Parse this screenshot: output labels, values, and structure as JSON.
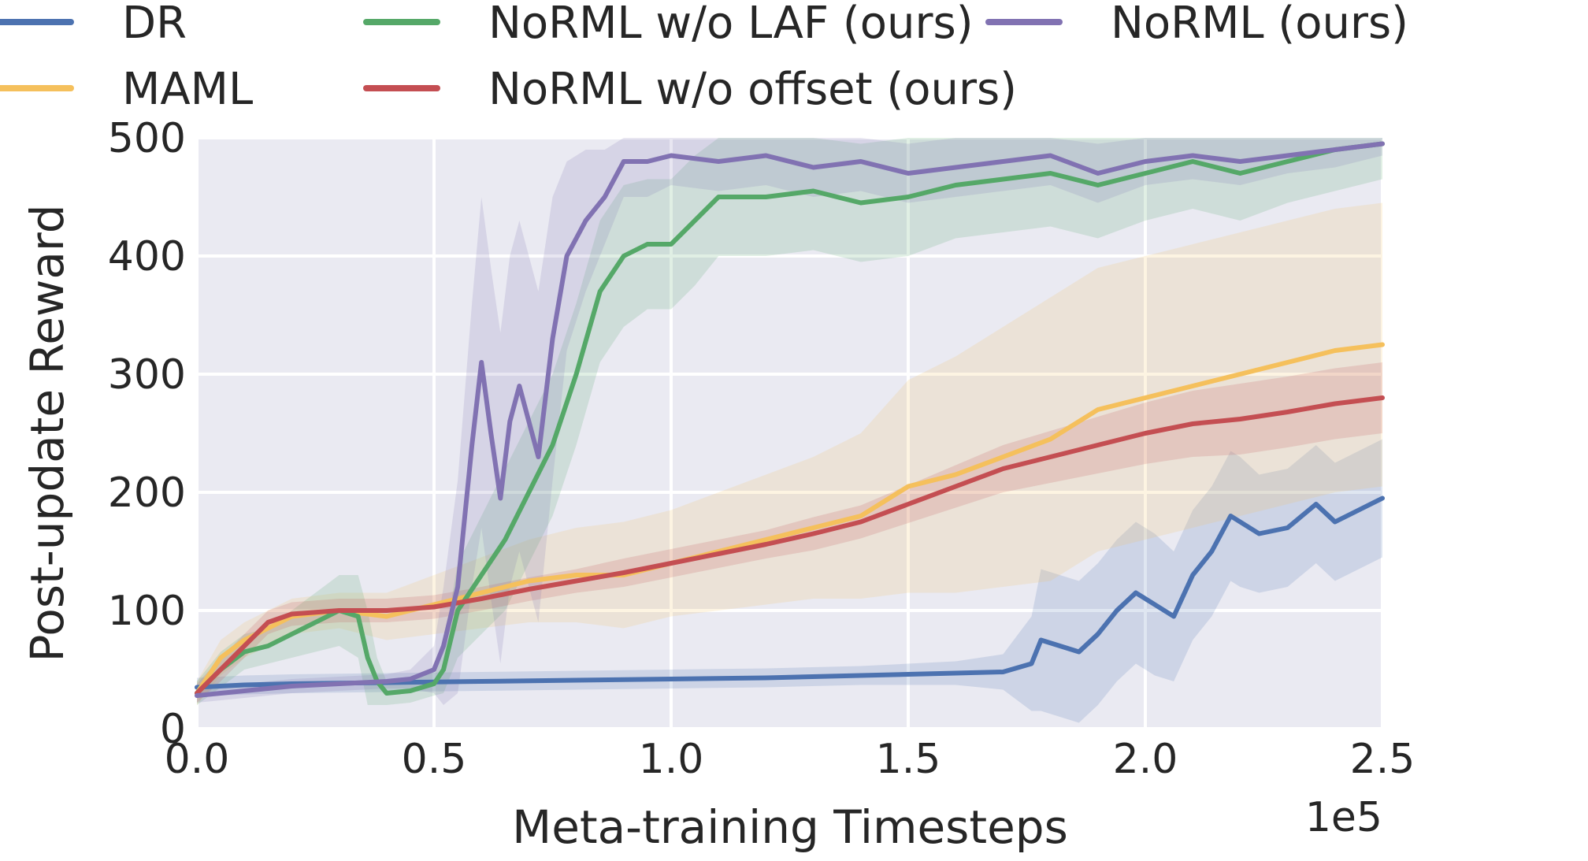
{
  "chart_data": {
    "type": "line",
    "xlabel": "Meta-training Timesteps",
    "ylabel": "Post-update Reward",
    "x_multiplier_label": "1e5",
    "xlim": [
      0,
      2.5
    ],
    "ylim": [
      0,
      500
    ],
    "xticks": [
      0.0,
      0.5,
      1.0,
      1.5,
      2.0,
      2.5
    ],
    "xtick_labels": [
      "0.0",
      "0.5",
      "1.0",
      "1.5",
      "2.0",
      "2.5"
    ],
    "yticks": [
      0,
      100,
      200,
      300,
      400,
      500
    ],
    "ytick_labels": [
      "0",
      "100",
      "200",
      "300",
      "400",
      "500"
    ],
    "grid": true,
    "legend_position": "top, outside plot",
    "series": [
      {
        "name": "DR",
        "color": "#4c72b0",
        "x": [
          0.0,
          0.1,
          0.2,
          0.4,
          0.6,
          0.8,
          1.0,
          1.2,
          1.4,
          1.6,
          1.7,
          1.76,
          1.78,
          1.82,
          1.86,
          1.9,
          1.94,
          1.98,
          2.02,
          2.06,
          2.1,
          2.14,
          2.18,
          2.2,
          2.24,
          2.3,
          2.36,
          2.4,
          2.45,
          2.5
        ],
        "y": [
          35,
          37,
          38,
          39,
          40,
          41,
          42,
          43,
          45,
          47,
          48,
          55,
          75,
          70,
          65,
          80,
          100,
          115,
          105,
          95,
          130,
          150,
          180,
          175,
          165,
          170,
          190,
          175,
          185,
          195
        ],
        "band": [
          8,
          8,
          8,
          8,
          8,
          8,
          8,
          8,
          8,
          10,
          15,
          40,
          60,
          60,
          60,
          60,
          60,
          60,
          60,
          55,
          55,
          55,
          55,
          55,
          50,
          50,
          50,
          50,
          50,
          50
        ]
      },
      {
        "name": "MAML",
        "color": "#f5c05c",
        "x": [
          0.0,
          0.05,
          0.1,
          0.15,
          0.2,
          0.3,
          0.4,
          0.5,
          0.6,
          0.7,
          0.8,
          0.9,
          1.0,
          1.1,
          1.2,
          1.3,
          1.4,
          1.5,
          1.6,
          1.7,
          1.8,
          1.9,
          2.0,
          2.1,
          2.2,
          2.3,
          2.4,
          2.5
        ],
        "y": [
          30,
          60,
          75,
          85,
          95,
          100,
          95,
          105,
          115,
          125,
          130,
          130,
          140,
          150,
          160,
          170,
          180,
          205,
          215,
          230,
          245,
          270,
          280,
          290,
          300,
          310,
          320,
          325
        ],
        "band": [
          10,
          15,
          15,
          15,
          15,
          15,
          20,
          25,
          30,
          35,
          40,
          45,
          45,
          50,
          55,
          60,
          70,
          90,
          100,
          110,
          120,
          120,
          120,
          120,
          120,
          120,
          120,
          120
        ]
      },
      {
        "name": "NoRML w/o LAF (ours)",
        "color": "#55a868",
        "x": [
          0.0,
          0.05,
          0.1,
          0.15,
          0.2,
          0.25,
          0.3,
          0.34,
          0.36,
          0.38,
          0.4,
          0.45,
          0.5,
          0.52,
          0.55,
          0.6,
          0.65,
          0.7,
          0.75,
          0.8,
          0.85,
          0.9,
          0.95,
          1.0,
          1.05,
          1.1,
          1.2,
          1.3,
          1.4,
          1.5,
          1.6,
          1.7,
          1.8,
          1.9,
          2.0,
          2.1,
          2.2,
          2.3,
          2.4,
          2.5
        ],
        "y": [
          30,
          50,
          65,
          70,
          80,
          90,
          100,
          95,
          60,
          40,
          30,
          32,
          38,
          50,
          100,
          130,
          160,
          200,
          240,
          300,
          370,
          400,
          410,
          410,
          430,
          450,
          450,
          455,
          445,
          450,
          460,
          465,
          470,
          460,
          470,
          480,
          470,
          480,
          490,
          495
        ],
        "band": [
          10,
          15,
          15,
          15,
          20,
          25,
          30,
          35,
          40,
          20,
          10,
          10,
          10,
          20,
          40,
          50,
          60,
          60,
          60,
          60,
          60,
          60,
          55,
          55,
          55,
          50,
          50,
          50,
          50,
          50,
          45,
          45,
          45,
          45,
          40,
          40,
          40,
          35,
          35,
          30
        ]
      },
      {
        "name": "NoRML w/o offset (ours)",
        "color": "#c44e52",
        "x": [
          0.0,
          0.05,
          0.1,
          0.15,
          0.2,
          0.3,
          0.4,
          0.5,
          0.6,
          0.7,
          0.8,
          0.9,
          1.0,
          1.1,
          1.2,
          1.3,
          1.4,
          1.5,
          1.6,
          1.7,
          1.8,
          1.9,
          2.0,
          2.1,
          2.2,
          2.3,
          2.4,
          2.5
        ],
        "y": [
          30,
          50,
          70,
          90,
          97,
          100,
          100,
          103,
          110,
          118,
          125,
          132,
          140,
          148,
          156,
          165,
          175,
          190,
          205,
          220,
          230,
          240,
          250,
          258,
          262,
          268,
          275,
          280
        ],
        "band": [
          8,
          10,
          10,
          10,
          10,
          10,
          10,
          10,
          10,
          10,
          10,
          12,
          12,
          12,
          12,
          14,
          14,
          16,
          18,
          20,
          22,
          24,
          26,
          28,
          30,
          30,
          30,
          30
        ]
      },
      {
        "name": "NoRML (ours)",
        "color": "#8172b2",
        "x": [
          0.0,
          0.1,
          0.2,
          0.3,
          0.4,
          0.45,
          0.5,
          0.52,
          0.55,
          0.58,
          0.6,
          0.62,
          0.64,
          0.66,
          0.68,
          0.7,
          0.72,
          0.75,
          0.78,
          0.82,
          0.86,
          0.9,
          0.95,
          1.0,
          1.1,
          1.2,
          1.3,
          1.4,
          1.5,
          1.6,
          1.7,
          1.8,
          1.9,
          2.0,
          2.1,
          2.2,
          2.3,
          2.4,
          2.5
        ],
        "y": [
          28,
          32,
          36,
          38,
          40,
          42,
          50,
          70,
          120,
          240,
          310,
          250,
          195,
          260,
          290,
          260,
          230,
          330,
          400,
          430,
          450,
          480,
          480,
          485,
          480,
          485,
          475,
          480,
          470,
          475,
          480,
          485,
          470,
          480,
          485,
          480,
          485,
          490,
          495
        ],
        "band": [
          6,
          6,
          6,
          6,
          6,
          8,
          20,
          50,
          90,
          120,
          140,
          140,
          140,
          140,
          140,
          140,
          140,
          120,
          80,
          60,
          40,
          30,
          30,
          25,
          25,
          25,
          25,
          25,
          25,
          25,
          25,
          25,
          25,
          20,
          20,
          20,
          15,
          15,
          10
        ]
      }
    ]
  }
}
